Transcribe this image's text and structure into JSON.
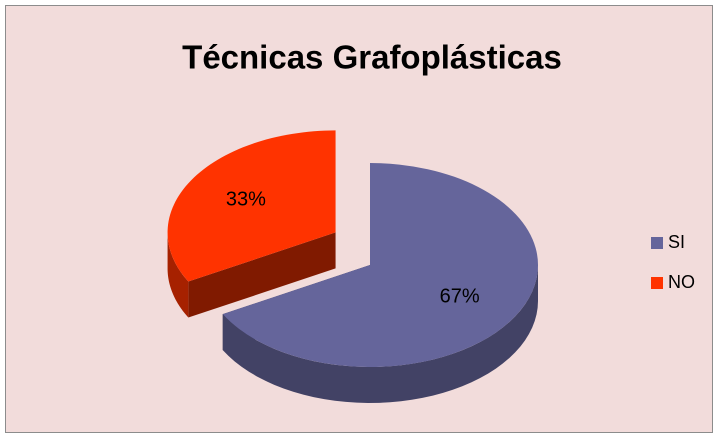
{
  "chart_data": {
    "type": "pie",
    "title": "Técnicas Grafoplásticas",
    "categories": [
      "SI",
      "NO"
    ],
    "values": [
      67,
      33
    ],
    "value_labels": [
      "67%",
      "33%"
    ],
    "colors": [
      "#65659b",
      "#ff3300"
    ],
    "legend": "right",
    "explode": [
      false,
      true
    ]
  }
}
